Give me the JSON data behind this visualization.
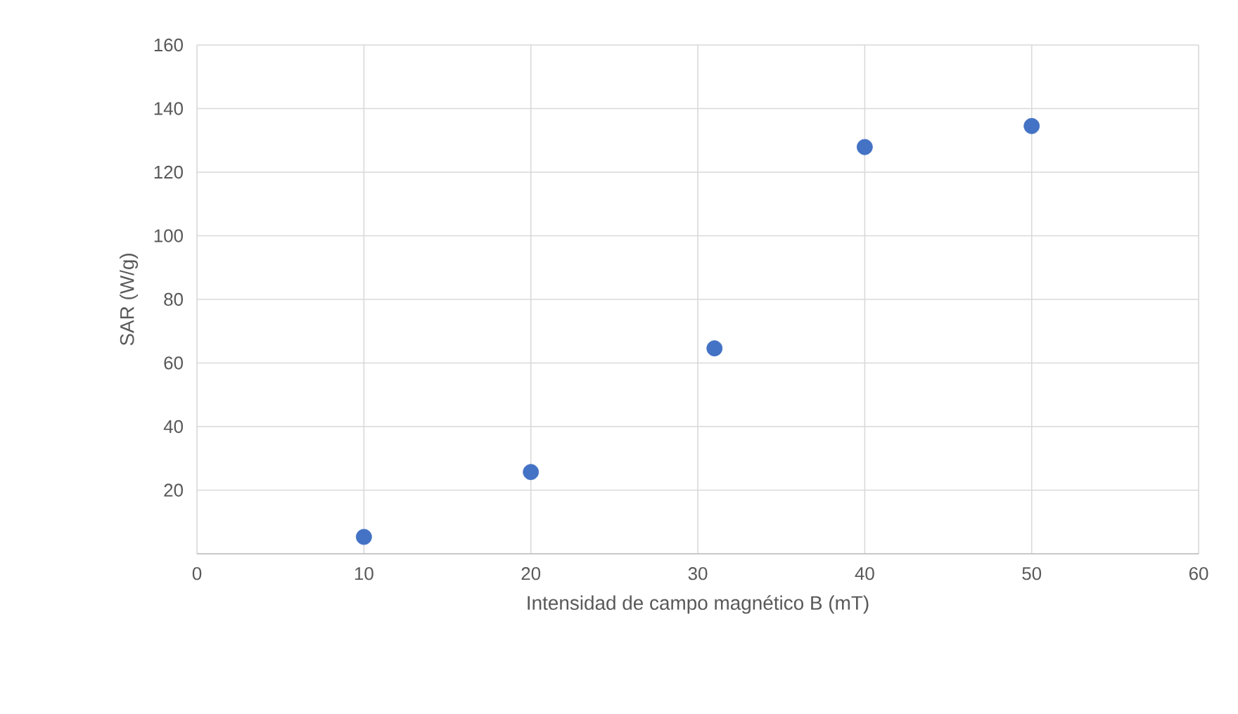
{
  "chart_data": {
    "type": "scatter",
    "xlabel": "Intensidad de campo magnético B (mT)",
    "ylabel": "SAR (W/g)",
    "x": [
      10,
      20,
      31,
      40,
      50
    ],
    "series": [
      {
        "color": "#4472c4",
        "values": [
          5.3,
          25.7,
          64.6,
          127.9,
          134.5
        ]
      }
    ],
    "xlim": [
      0,
      60
    ],
    "xticks": [
      0,
      10,
      20,
      30,
      40,
      50,
      60
    ],
    "ylim": [
      0,
      160
    ],
    "yticks": [
      {
        "value": 0,
        "label": null
      },
      20,
      40,
      60,
      80,
      100,
      120,
      140,
      160
    ],
    "grid": true,
    "marker": "circle"
  }
}
